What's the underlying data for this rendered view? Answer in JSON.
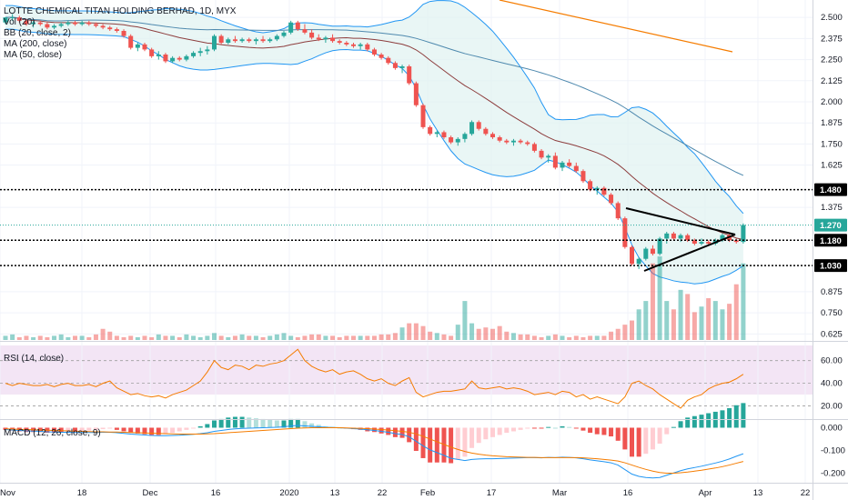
{
  "header": {
    "symbol_title": "LOTTE CHEMICAL TITAN HOLDING BERHAD, 1D, MYX",
    "indicators": [
      "Vol (20)",
      "BB (20, close, 2)",
      "MA (200, close)",
      "MA (50, close)"
    ]
  },
  "rsi_title": "RSI (14, close)",
  "macd_title": "MACD (12, 26, close, 9)",
  "colors": {
    "up": "#26a69a",
    "down": "#ef5350",
    "bb_band": "#2196f3",
    "bb_fill": "#e0f2f1",
    "ma200": "#f57c00",
    "ma50": "#4e89ae",
    "basis": "#8d3d3d",
    "rsi_line": "#f57c00",
    "rsi_bg": "#f3e5f5",
    "macd_line": "#2196f3",
    "signal_line": "#f57c00"
  },
  "price_axis_labels": [
    "2.500",
    "2.375",
    "2.250",
    "2.125",
    "2.000",
    "1.875",
    "1.750",
    "1.625",
    "1.375",
    "0.875",
    "0.750",
    "0.625"
  ],
  "price_tags": [
    {
      "value": "1.480",
      "style": "black"
    },
    {
      "value": "1.270",
      "style": "green"
    },
    {
      "value": "1.180",
      "style": "black"
    },
    {
      "value": "1.030",
      "style": "black"
    }
  ],
  "rsi_axis_labels": [
    "60.00",
    "40.00",
    "20.00"
  ],
  "macd_axis_labels": [
    "0.000",
    "-0.100",
    "-0.200"
  ],
  "x_axis_labels": [
    "Nov",
    "18",
    "Dec",
    "16",
    "2020",
    "13",
    "22",
    "Feb",
    "17",
    "Mar",
    "16",
    "Apr",
    "13",
    "22"
  ],
  "chart_data": {
    "type": "candlestick",
    "ylim": [
      0.6,
      2.56
    ],
    "horizontal_levels": [
      1.48,
      1.27,
      1.18,
      1.03
    ],
    "candles": [
      [
        2.47,
        2.5,
        2.46,
        2.5
      ],
      [
        2.5,
        2.52,
        2.48,
        2.5
      ],
      [
        2.5,
        2.51,
        2.47,
        2.48
      ],
      [
        2.48,
        2.49,
        2.45,
        2.46
      ],
      [
        2.46,
        2.48,
        2.44,
        2.47
      ],
      [
        2.47,
        2.48,
        2.45,
        2.46
      ],
      [
        2.46,
        2.47,
        2.43,
        2.44
      ],
      [
        2.44,
        2.46,
        2.43,
        2.45
      ],
      [
        2.45,
        2.47,
        2.44,
        2.46
      ],
      [
        2.46,
        2.48,
        2.45,
        2.47
      ],
      [
        2.47,
        2.48,
        2.45,
        2.46
      ],
      [
        2.46,
        2.48,
        2.45,
        2.47
      ],
      [
        2.47,
        2.48,
        2.45,
        2.46
      ],
      [
        2.46,
        2.47,
        2.44,
        2.45
      ],
      [
        2.45,
        2.46,
        2.43,
        2.44
      ],
      [
        2.44,
        2.45,
        2.42,
        2.43
      ],
      [
        2.43,
        2.44,
        2.41,
        2.42
      ],
      [
        2.42,
        2.43,
        2.38,
        2.39
      ],
      [
        2.39,
        2.4,
        2.31,
        2.32
      ],
      [
        2.32,
        2.35,
        2.3,
        2.34
      ],
      [
        2.34,
        2.35,
        2.3,
        2.31
      ],
      [
        2.31,
        2.32,
        2.26,
        2.27
      ],
      [
        2.27,
        2.3,
        2.25,
        2.28
      ],
      [
        2.28,
        2.29,
        2.23,
        2.24
      ],
      [
        2.24,
        2.27,
        2.23,
        2.26
      ],
      [
        2.26,
        2.27,
        2.24,
        2.25
      ],
      [
        2.25,
        2.28,
        2.24,
        2.27
      ],
      [
        2.27,
        2.3,
        2.26,
        2.29
      ],
      [
        2.29,
        2.32,
        2.27,
        2.3
      ],
      [
        2.3,
        2.33,
        2.28,
        2.31
      ],
      [
        2.31,
        2.4,
        2.3,
        2.39
      ],
      [
        2.39,
        2.4,
        2.34,
        2.35
      ],
      [
        2.35,
        2.38,
        2.34,
        2.37
      ],
      [
        2.37,
        2.39,
        2.35,
        2.36
      ],
      [
        2.36,
        2.38,
        2.35,
        2.37
      ],
      [
        2.37,
        2.38,
        2.35,
        2.36
      ],
      [
        2.36,
        2.38,
        2.34,
        2.37
      ],
      [
        2.37,
        2.39,
        2.35,
        2.36
      ],
      [
        2.36,
        2.38,
        2.35,
        2.37
      ],
      [
        2.37,
        2.4,
        2.36,
        2.39
      ],
      [
        2.39,
        2.42,
        2.38,
        2.41
      ],
      [
        2.41,
        2.48,
        2.4,
        2.47
      ],
      [
        2.47,
        2.48,
        2.42,
        2.43
      ],
      [
        2.43,
        2.46,
        2.4,
        2.41
      ],
      [
        2.41,
        2.43,
        2.37,
        2.38
      ],
      [
        2.38,
        2.4,
        2.36,
        2.37
      ],
      [
        2.37,
        2.39,
        2.35,
        2.38
      ],
      [
        2.38,
        2.4,
        2.35,
        2.36
      ],
      [
        2.36,
        2.37,
        2.34,
        2.35
      ],
      [
        2.35,
        2.36,
        2.33,
        2.34
      ],
      [
        2.34,
        2.35,
        2.32,
        2.33
      ],
      [
        2.33,
        2.35,
        2.31,
        2.34
      ],
      [
        2.34,
        2.35,
        2.3,
        2.31
      ],
      [
        2.31,
        2.32,
        2.27,
        2.28
      ],
      [
        2.28,
        2.29,
        2.25,
        2.26
      ],
      [
        2.26,
        2.27,
        2.22,
        2.23
      ],
      [
        2.23,
        2.24,
        2.19,
        2.2
      ],
      [
        2.2,
        2.22,
        2.17,
        2.21
      ],
      [
        2.21,
        2.22,
        2.1,
        2.11
      ],
      [
        2.11,
        2.12,
        1.97,
        1.98
      ],
      [
        1.98,
        1.99,
        1.84,
        1.85
      ],
      [
        1.85,
        1.86,
        1.8,
        1.81
      ],
      [
        1.81,
        1.83,
        1.79,
        1.82
      ],
      [
        1.82,
        1.83,
        1.78,
        1.79
      ],
      [
        1.79,
        1.8,
        1.75,
        1.76
      ],
      [
        1.76,
        1.79,
        1.74,
        1.78
      ],
      [
        1.78,
        1.82,
        1.76,
        1.81
      ],
      [
        1.81,
        1.89,
        1.8,
        1.88
      ],
      [
        1.88,
        1.89,
        1.83,
        1.84
      ],
      [
        1.84,
        1.85,
        1.8,
        1.81
      ],
      [
        1.81,
        1.82,
        1.78,
        1.79
      ],
      [
        1.79,
        1.8,
        1.76,
        1.77
      ],
      [
        1.77,
        1.78,
        1.75,
        1.76
      ],
      [
        1.76,
        1.78,
        1.74,
        1.77
      ],
      [
        1.77,
        1.78,
        1.75,
        1.76
      ],
      [
        1.76,
        1.77,
        1.74,
        1.75
      ],
      [
        1.75,
        1.76,
        1.7,
        1.71
      ],
      [
        1.71,
        1.72,
        1.66,
        1.67
      ],
      [
        1.67,
        1.69,
        1.64,
        1.68
      ],
      [
        1.68,
        1.7,
        1.6,
        1.61
      ],
      [
        1.61,
        1.65,
        1.59,
        1.64
      ],
      [
        1.64,
        1.66,
        1.61,
        1.62
      ],
      [
        1.62,
        1.64,
        1.58,
        1.59
      ],
      [
        1.59,
        1.6,
        1.52,
        1.53
      ],
      [
        1.53,
        1.54,
        1.47,
        1.48
      ],
      [
        1.48,
        1.5,
        1.45,
        1.49
      ],
      [
        1.49,
        1.5,
        1.44,
        1.45
      ],
      [
        1.45,
        1.46,
        1.39,
        1.4
      ],
      [
        1.4,
        1.41,
        1.3,
        1.31
      ],
      [
        1.31,
        1.32,
        1.13,
        1.14
      ],
      [
        1.14,
        1.15,
        1.03,
        1.04
      ],
      [
        1.04,
        1.08,
        1.01,
        1.07
      ],
      [
        1.07,
        1.14,
        1.06,
        1.13
      ],
      [
        1.13,
        1.15,
        1.09,
        1.1
      ],
      [
        1.1,
        1.2,
        1.09,
        1.19
      ],
      [
        1.19,
        1.23,
        1.16,
        1.22
      ],
      [
        1.22,
        1.23,
        1.18,
        1.19
      ],
      [
        1.19,
        1.22,
        1.17,
        1.21
      ],
      [
        1.21,
        1.22,
        1.17,
        1.18
      ],
      [
        1.18,
        1.19,
        1.15,
        1.16
      ],
      [
        1.16,
        1.19,
        1.15,
        1.17
      ],
      [
        1.17,
        1.18,
        1.15,
        1.16
      ],
      [
        1.16,
        1.19,
        1.15,
        1.18
      ],
      [
        1.18,
        1.22,
        1.17,
        1.21
      ],
      [
        1.21,
        1.22,
        1.17,
        1.18
      ],
      [
        1.18,
        1.19,
        1.16,
        1.17
      ],
      [
        1.17,
        1.28,
        1.16,
        1.27
      ]
    ],
    "volume": [
      3,
      4,
      2,
      3,
      2,
      3,
      2,
      3,
      4,
      2,
      3,
      3,
      2,
      4,
      8,
      6,
      3,
      2,
      3,
      2,
      3,
      2,
      4,
      3,
      3,
      2,
      4,
      3,
      2,
      3,
      5,
      3,
      2,
      3,
      4,
      3,
      3,
      2,
      3,
      4,
      5,
      3,
      2,
      3,
      4,
      4,
      3,
      3,
      2,
      3,
      3,
      3,
      3,
      3,
      4,
      4,
      5,
      9,
      12,
      12,
      10,
      6,
      5,
      4,
      3,
      11,
      28,
      12,
      8,
      9,
      8,
      10,
      6,
      5,
      4,
      4,
      3,
      2,
      3,
      4,
      3,
      2,
      3,
      2,
      3,
      3,
      3,
      6,
      8,
      11,
      14,
      22,
      28,
      55,
      60,
      28,
      22,
      36,
      33,
      20,
      24,
      30,
      28,
      22,
      26,
      40,
      55
    ],
    "vol_max": 62,
    "rsi": [
      40,
      38,
      40,
      39,
      38,
      38,
      39,
      37,
      39,
      40,
      38,
      38,
      39,
      37,
      40,
      42,
      36,
      33,
      30,
      31,
      29,
      28,
      29,
      27,
      30,
      32,
      34,
      38,
      42,
      50,
      60,
      54,
      52,
      56,
      55,
      52,
      56,
      55,
      57,
      58,
      60,
      65,
      70,
      60,
      55,
      52,
      50,
      52,
      48,
      50,
      51,
      48,
      44,
      42,
      44,
      40,
      38,
      42,
      45,
      32,
      28,
      30,
      32,
      33,
      33,
      34,
      35,
      42,
      36,
      35,
      36,
      37,
      35,
      36,
      35,
      33,
      30,
      31,
      32,
      30,
      33,
      32,
      28,
      30,
      26,
      28,
      26,
      24,
      22,
      28,
      40,
      42,
      38,
      35,
      30,
      26,
      22,
      18,
      25,
      28,
      30,
      35,
      38,
      40,
      41,
      44,
      48
    ],
    "rsi_ylim": [
      10,
      75
    ],
    "macd": [
      -0.008,
      -0.01,
      -0.012,
      -0.014,
      -0.015,
      -0.016,
      -0.018,
      -0.019,
      -0.02,
      -0.02,
      -0.021,
      -0.021,
      -0.021,
      -0.021,
      -0.02,
      -0.02,
      -0.022,
      -0.025,
      -0.028,
      -0.03,
      -0.032,
      -0.034,
      -0.035,
      -0.035,
      -0.034,
      -0.033,
      -0.031,
      -0.029,
      -0.026,
      -0.022,
      -0.016,
      -0.012,
      -0.008,
      -0.005,
      -0.003,
      -0.002,
      -0.001,
      0.0,
      0.001,
      0.002,
      0.004,
      0.008,
      0.01,
      0.008,
      0.006,
      0.004,
      0.002,
      0.001,
      0.0,
      -0.002,
      -0.004,
      -0.006,
      -0.009,
      -0.012,
      -0.016,
      -0.02,
      -0.026,
      -0.03,
      -0.04,
      -0.06,
      -0.08,
      -0.098,
      -0.11,
      -0.122,
      -0.135,
      -0.14,
      -0.145,
      -0.14,
      -0.138,
      -0.137,
      -0.137,
      -0.136,
      -0.135,
      -0.134,
      -0.133,
      -0.132,
      -0.132,
      -0.133,
      -0.131,
      -0.132,
      -0.13,
      -0.131,
      -0.133,
      -0.137,
      -0.142,
      -0.146,
      -0.15,
      -0.155,
      -0.165,
      -0.185,
      -0.205,
      -0.215,
      -0.22,
      -0.222,
      -0.22,
      -0.21,
      -0.2,
      -0.19,
      -0.182,
      -0.176,
      -0.17,
      -0.163,
      -0.156,
      -0.148,
      -0.138,
      -0.126,
      -0.115
    ],
    "signal": [
      -0.005,
      -0.006,
      -0.007,
      -0.008,
      -0.009,
      -0.01,
      -0.011,
      -0.012,
      -0.013,
      -0.014,
      -0.015,
      -0.016,
      -0.017,
      -0.018,
      -0.018,
      -0.019,
      -0.019,
      -0.02,
      -0.021,
      -0.022,
      -0.023,
      -0.024,
      -0.025,
      -0.026,
      -0.027,
      -0.028,
      -0.028,
      -0.028,
      -0.028,
      -0.027,
      -0.026,
      -0.024,
      -0.022,
      -0.02,
      -0.018,
      -0.016,
      -0.014,
      -0.012,
      -0.01,
      -0.008,
      -0.006,
      -0.004,
      -0.002,
      -0.001,
      0.0,
      0.0,
      0.0,
      0.0,
      0.0,
      -0.001,
      -0.002,
      -0.003,
      -0.004,
      -0.006,
      -0.008,
      -0.01,
      -0.013,
      -0.016,
      -0.02,
      -0.028,
      -0.038,
      -0.05,
      -0.062,
      -0.074,
      -0.086,
      -0.096,
      -0.105,
      -0.112,
      -0.117,
      -0.121,
      -0.124,
      -0.126,
      -0.128,
      -0.129,
      -0.13,
      -0.131,
      -0.131,
      -0.132,
      -0.132,
      -0.132,
      -0.132,
      -0.132,
      -0.132,
      -0.133,
      -0.135,
      -0.137,
      -0.14,
      -0.143,
      -0.147,
      -0.155,
      -0.165,
      -0.175,
      -0.184,
      -0.192,
      -0.198,
      -0.201,
      -0.201,
      -0.199,
      -0.196,
      -0.192,
      -0.188,
      -0.183,
      -0.178,
      -0.172,
      -0.165,
      -0.157,
      -0.149
    ],
    "macd_ylim": [
      -0.235,
      0.03
    ]
  }
}
